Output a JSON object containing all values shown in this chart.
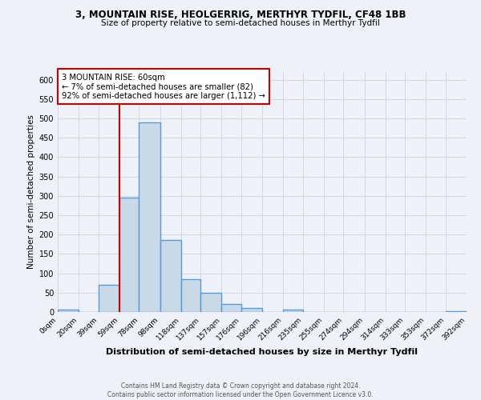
{
  "title1": "3, MOUNTAIN RISE, HEOLGERRIG, MERTHYR TYDFIL, CF48 1BB",
  "title2": "Size of property relative to semi-detached houses in Merthyr Tydfil",
  "xlabel": "Distribution of semi-detached houses by size in Merthyr Tydfil",
  "ylabel": "Number of semi-detached properties",
  "property_label": "3 MOUNTAIN RISE: 60sqm",
  "pct_smaller": 7,
  "pct_larger": 92,
  "n_smaller": 82,
  "n_larger": 1112,
  "bin_edges": [
    0,
    20,
    39,
    59,
    78,
    98,
    118,
    137,
    157,
    176,
    196,
    216,
    235,
    255,
    274,
    294,
    314,
    333,
    353,
    372,
    392
  ],
  "bin_counts": [
    7,
    0,
    70,
    295,
    490,
    185,
    85,
    50,
    20,
    10,
    0,
    7,
    0,
    0,
    0,
    0,
    0,
    0,
    0,
    2
  ],
  "bar_facecolor": "#c9d9e8",
  "bar_edgecolor": "#5b9bd5",
  "bar_linewidth": 1.0,
  "vline_x": 59,
  "vline_color": "#cc0000",
  "vline_linewidth": 1.5,
  "annotation_box_facecolor": "#ffffff",
  "annotation_box_edgecolor": "#cc0000",
  "grid_color": "#d0d8e8",
  "bg_color": "#eef2f8",
  "ylim": [
    0,
    620
  ],
  "yticks": [
    0,
    50,
    100,
    150,
    200,
    250,
    300,
    350,
    400,
    450,
    500,
    550,
    600
  ],
  "footer_line1": "Contains HM Land Registry data © Crown copyright and database right 2024.",
  "footer_line2": "Contains public sector information licensed under the Open Government Licence v3.0.",
  "tick_labels": [
    "0sqm",
    "20sqm",
    "39sqm",
    "59sqm",
    "78sqm",
    "98sqm",
    "118sqm",
    "137sqm",
    "157sqm",
    "176sqm",
    "196sqm",
    "216sqm",
    "235sqm",
    "255sqm",
    "274sqm",
    "294sqm",
    "314sqm",
    "333sqm",
    "353sqm",
    "372sqm",
    "392sqm"
  ]
}
